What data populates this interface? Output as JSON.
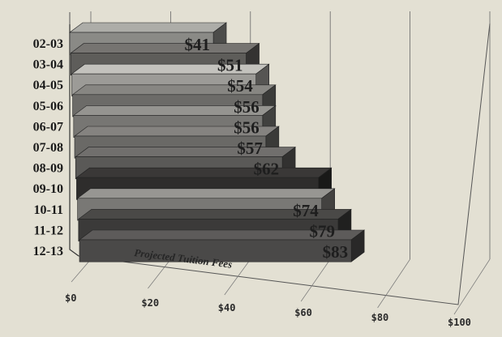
{
  "chart_data": {
    "type": "bar",
    "orientation": "horizontal",
    "three_d": true,
    "categories": [
      "02-03",
      "03-04",
      "04-05",
      "05-06",
      "06-07",
      "07-08",
      "08-09",
      "09-10",
      "10-11",
      "11-12",
      "12-13"
    ],
    "values": [
      41,
      51,
      54,
      56,
      56,
      57,
      62,
      73,
      74,
      79,
      83
    ],
    "data_labels": [
      "$41",
      "$51",
      "$54",
      "$56",
      "$56",
      "$57",
      "$62",
      "",
      "$74",
      "$79",
      "$83"
    ],
    "bar_colors": [
      "#8a8a86",
      "#5e5d5a",
      "#9c9b97",
      "#6c6b68",
      "#777673",
      "#6a6966",
      "#5a5957",
      "#2e2d2c",
      "#797875",
      "#3b3a39",
      "#4a4948"
    ],
    "annotation": "Projected Tuition Fees",
    "x_ticks": [
      "$0",
      "$20",
      "$40",
      "$60",
      "$80",
      "$100"
    ],
    "xlim": [
      0,
      100
    ],
    "grid": true,
    "title": "",
    "xlabel": "",
    "ylabel": ""
  }
}
